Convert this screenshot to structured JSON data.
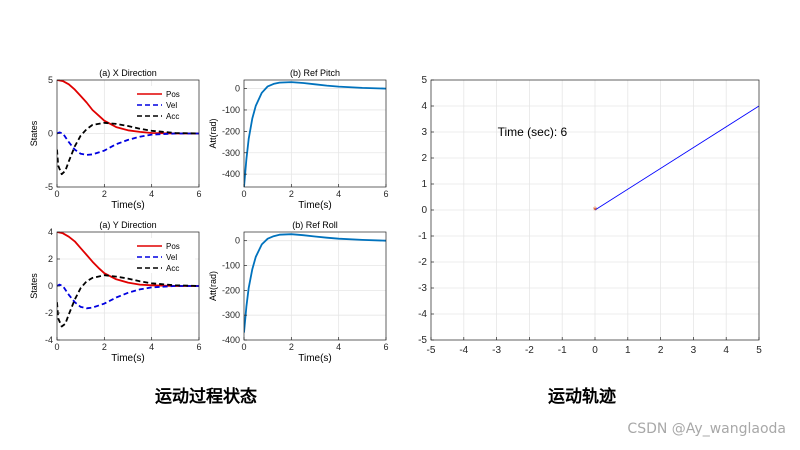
{
  "captions": {
    "left": "运动过程状态",
    "right": "运动轨迹"
  },
  "watermark": "CSDN @Ay_wanglaoda",
  "colors": {
    "pos": "#e00000",
    "vel": "#0000e0",
    "acc": "#000000",
    "att": "#0072bd",
    "traj": "#0000ff",
    "marker": "#d95319",
    "grid": "#e6e6e6"
  },
  "chart_data": [
    {
      "id": "x-direction",
      "type": "line",
      "title": "(a) X Direction",
      "xlabel": "Time(s)",
      "ylabel": "States",
      "xlim": [
        0,
        6
      ],
      "ylim": [
        -5,
        5
      ],
      "xticks": [
        0,
        2,
        4,
        6
      ],
      "yticks": [
        -5,
        0,
        5
      ],
      "grid": true,
      "legend": "top-right",
      "series": [
        {
          "name": "Pos",
          "style": "solid",
          "color": "#e00000",
          "x": [
            0,
            0.25,
            0.5,
            0.75,
            1,
            1.25,
            1.5,
            1.75,
            2,
            2.5,
            3,
            3.5,
            4,
            5,
            6
          ],
          "y": [
            5,
            4.9,
            4.6,
            4.1,
            3.5,
            2.9,
            2.2,
            1.7,
            1.2,
            0.6,
            0.3,
            0.15,
            0.05,
            0,
            0
          ]
        },
        {
          "name": "Vel",
          "style": "dashed",
          "color": "#0000e0",
          "x": [
            0,
            0.1,
            0.25,
            0.5,
            0.75,
            1,
            1.25,
            1.5,
            2,
            2.5,
            3,
            3.5,
            4,
            5,
            6
          ],
          "y": [
            0,
            0.1,
            0,
            -0.8,
            -1.5,
            -1.9,
            -2.0,
            -1.95,
            -1.6,
            -1.0,
            -0.6,
            -0.3,
            -0.1,
            0,
            0
          ]
        },
        {
          "name": "Acc",
          "style": "dashed",
          "color": "#000000",
          "x": [
            0,
            0.05,
            0.2,
            0.35,
            0.5,
            0.75,
            1,
            1.25,
            1.5,
            2,
            2.5,
            3,
            3.5,
            4,
            5,
            6
          ],
          "y": [
            -1.5,
            -3.0,
            -3.8,
            -3.5,
            -2.6,
            -1.2,
            -0.2,
            0.4,
            0.8,
            1.0,
            0.9,
            0.7,
            0.45,
            0.25,
            0.05,
            0
          ]
        }
      ]
    },
    {
      "id": "ref-pitch",
      "type": "line",
      "title": "(b) Ref Pitch",
      "xlabel": "Time(s)",
      "ylabel": "Att(rad)",
      "xlim": [
        0,
        6
      ],
      "ylim": [
        -460,
        40
      ],
      "xticks": [
        0,
        2,
        4,
        6
      ],
      "yticks": [
        -400,
        -300,
        -200,
        -100,
        0
      ],
      "grid": true,
      "series": [
        {
          "name": "",
          "style": "solid",
          "color": "#0072bd",
          "x": [
            0,
            0.1,
            0.2,
            0.35,
            0.5,
            0.75,
            1,
            1.25,
            1.5,
            2,
            2.5,
            3,
            3.5,
            4,
            5,
            6
          ],
          "y": [
            -460,
            -330,
            -235,
            -140,
            -80,
            -20,
            10,
            22,
            28,
            30,
            26,
            20,
            14,
            9,
            3,
            0
          ]
        }
      ]
    },
    {
      "id": "y-direction",
      "type": "line",
      "title": "(a) Y Direction",
      "xlabel": "Time(s)",
      "ylabel": "States",
      "xlim": [
        0,
        6
      ],
      "ylim": [
        -4,
        4
      ],
      "xticks": [
        0,
        2,
        4,
        6
      ],
      "yticks": [
        -4,
        -2,
        0,
        2,
        4
      ],
      "grid": true,
      "legend": "top-right",
      "series": [
        {
          "name": "Pos",
          "style": "solid",
          "color": "#e00000",
          "x": [
            0,
            0.25,
            0.5,
            0.75,
            1,
            1.25,
            1.5,
            1.75,
            2,
            2.5,
            3,
            3.5,
            4,
            5,
            6
          ],
          "y": [
            4,
            3.9,
            3.65,
            3.3,
            2.8,
            2.3,
            1.8,
            1.35,
            0.95,
            0.5,
            0.25,
            0.1,
            0.05,
            0,
            0
          ]
        },
        {
          "name": "Vel",
          "style": "dashed",
          "color": "#0000e0",
          "x": [
            0,
            0.1,
            0.25,
            0.5,
            0.75,
            1,
            1.25,
            1.5,
            2,
            2.5,
            3,
            3.5,
            4,
            5,
            6
          ],
          "y": [
            0,
            0.1,
            0,
            -0.65,
            -1.2,
            -1.55,
            -1.65,
            -1.6,
            -1.3,
            -0.85,
            -0.5,
            -0.25,
            -0.1,
            0,
            0
          ]
        },
        {
          "name": "Acc",
          "style": "dashed",
          "color": "#000000",
          "x": [
            0,
            0.05,
            0.2,
            0.35,
            0.5,
            0.75,
            1,
            1.25,
            1.5,
            2,
            2.5,
            3,
            3.5,
            4,
            5,
            6
          ],
          "y": [
            -1.2,
            -2.4,
            -3.0,
            -2.8,
            -2.1,
            -1.0,
            -0.15,
            0.35,
            0.6,
            0.8,
            0.7,
            0.55,
            0.35,
            0.2,
            0.05,
            0
          ]
        }
      ]
    },
    {
      "id": "ref-roll",
      "type": "line",
      "title": "(b) Ref Roll",
      "xlabel": "Time(s)",
      "ylabel": "Att(rad)",
      "xlim": [
        0,
        6
      ],
      "ylim": [
        -400,
        35
      ],
      "xticks": [
        0,
        2,
        4,
        6
      ],
      "yticks": [
        -400,
        -300,
        -200,
        -100,
        0
      ],
      "grid": true,
      "series": [
        {
          "name": "",
          "style": "solid",
          "color": "#0072bd",
          "x": [
            0,
            0.1,
            0.2,
            0.35,
            0.5,
            0.75,
            1,
            1.25,
            1.5,
            2,
            2.5,
            3,
            3.5,
            4,
            5,
            6
          ],
          "y": [
            -370,
            -265,
            -190,
            -115,
            -65,
            -15,
            8,
            18,
            24,
            26,
            22,
            17,
            12,
            8,
            3,
            0
          ]
        }
      ]
    },
    {
      "id": "trajectory",
      "type": "line",
      "title": "",
      "xlabel": "",
      "ylabel": "",
      "xlim": [
        -5,
        5
      ],
      "ylim": [
        -5,
        5
      ],
      "xticks": [
        -5,
        -4,
        -3,
        -2,
        -1,
        0,
        1,
        2,
        3,
        4,
        5
      ],
      "yticks": [
        -5,
        -4,
        -3,
        -2,
        -1,
        0,
        1,
        2,
        3,
        4,
        5
      ],
      "grid": true,
      "annotation": {
        "text": "Time (sec):  6",
        "x": -3,
        "y": 3
      },
      "marker": {
        "symbol": "*",
        "x": 0,
        "y": 0,
        "color": "#d95319"
      },
      "series": [
        {
          "name": "",
          "style": "solid",
          "color": "#0000ff",
          "x": [
            0,
            5
          ],
          "y": [
            0,
            4
          ]
        }
      ]
    }
  ]
}
